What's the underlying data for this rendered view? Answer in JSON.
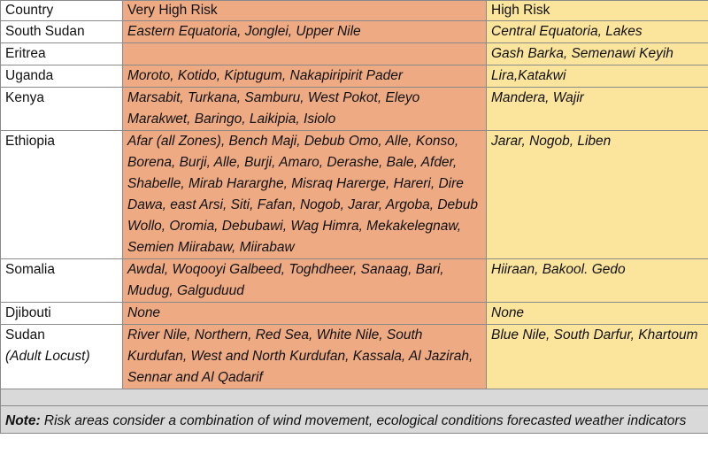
{
  "table": {
    "headers": {
      "country": "Country",
      "very_high": "Very High Risk",
      "high": "High Risk"
    },
    "rows": [
      {
        "country": "South Sudan",
        "country_sub": "",
        "very_high": "Eastern Equatoria, Jonglei, Upper Nile",
        "high": "Central Equatoria, Lakes"
      },
      {
        "country": "Eritrea",
        "country_sub": "",
        "very_high": "",
        "high": "Gash Barka, Semenawi Keyih"
      },
      {
        "country": "Uganda",
        "country_sub": "",
        "very_high": "Moroto, Kotido, Kiptugum, Nakapiripirit Pader",
        "high": "Lira,Katakwi"
      },
      {
        "country": "Kenya",
        "country_sub": "",
        "very_high": "Marsabit, Turkana, Samburu, West Pokot, Eleyo Marakwet, Baringo, Laikipia, Isiolo",
        "high": "Mandera, Wajir"
      },
      {
        "country": "Ethiopia",
        "country_sub": "",
        "very_high": "Afar (all Zones), Bench Maji, Debub Omo, Alle, Konso, Borena, Burji, Alle, Burji, Amaro, Derashe, Bale, Afder, Shabelle, Mirab Hararghe, Misraq Harerge, Hareri, Dire Dawa, east Arsi, Siti, Fafan, Nogob, Jarar, Argoba, Debub Wollo, Oromia, Debubawi, Wag Himra, Mekakelegnaw, Semien Miirabaw, Miirabaw",
        "high": "Jarar, Nogob, Liben"
      },
      {
        "country": "Somalia",
        "country_sub": "",
        "very_high": "Awdal, Woqooyi Galbeed, Toghdheer, Sanaag, Bari, Mudug, Galguduud",
        "high": "Hiiraan, Bakool. Gedo"
      },
      {
        "country": "Djibouti",
        "country_sub": "",
        "very_high": "None",
        "high": "None"
      },
      {
        "country": "Sudan",
        "country_sub": "(Adult Locust)",
        "very_high": "River Nile, Northern, Red Sea, White Nile, South Kurdufan, West and North Kurdufan, Kassala, Al Jazirah, Sennar and Al Qadarif",
        "high": " Blue Nile, South Darfur, Khartoum"
      }
    ]
  },
  "note": {
    "label": "Note:",
    "text": " Risk areas consider a combination of wind movement, ecological conditions forecasted weather indicators"
  }
}
